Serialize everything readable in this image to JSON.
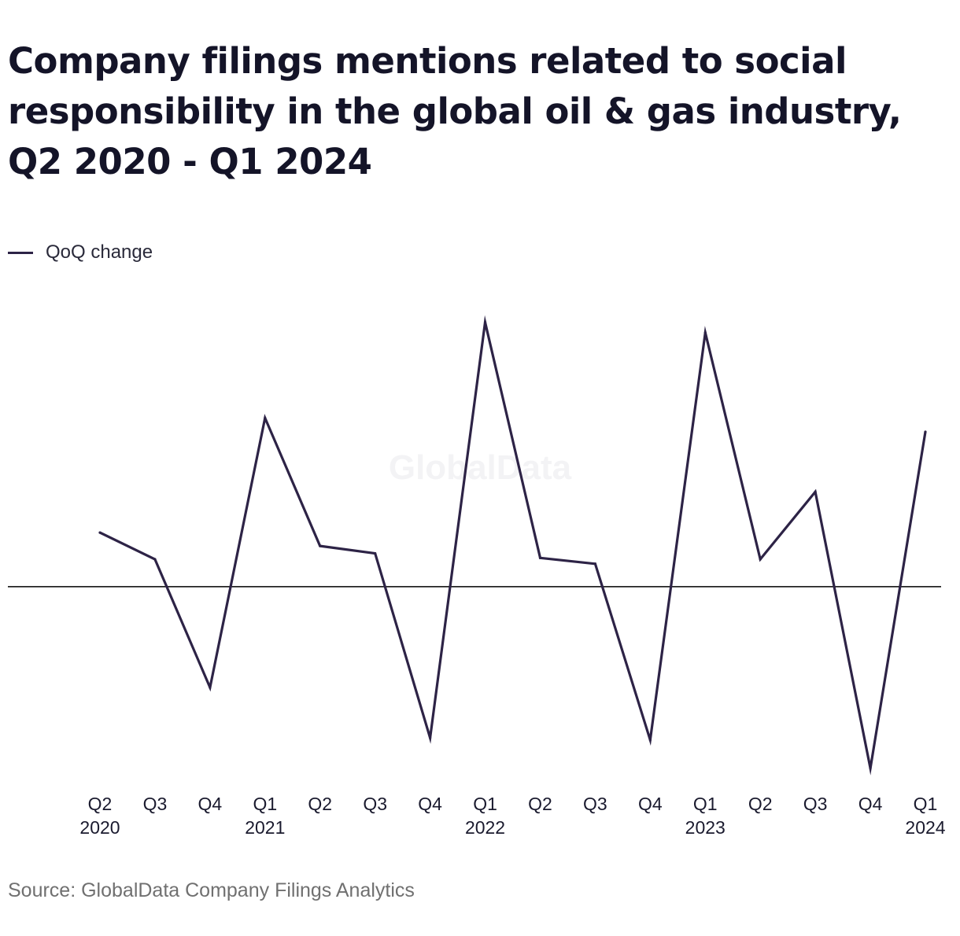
{
  "title": "Company filings mentions related to social responsibility in the global oil & gas industry, Q2 2020 - Q1 2024",
  "legend": {
    "series_label": "QoQ change"
  },
  "watermark": "GlobalData",
  "source": "Source: GlobalData Company Filings Analytics",
  "colors": {
    "line": "#2d2346",
    "zero_line": "#000000",
    "text": "#141428"
  },
  "chart_data": {
    "type": "line",
    "title": "Company filings mentions related to social responsibility in the global oil & gas industry, Q2 2020 - Q1 2024",
    "xlabel": "",
    "ylabel": "",
    "categories": [
      "Q2 2020",
      "Q3",
      "Q4",
      "Q1 2021",
      "Q2",
      "Q3",
      "Q4",
      "Q1 2022",
      "Q2",
      "Q3",
      "Q4",
      "Q1 2023",
      "Q2",
      "Q3",
      "Q4",
      "Q1 2024"
    ],
    "tick_labels": [
      [
        "Q2",
        "2020"
      ],
      [
        "Q3",
        ""
      ],
      [
        "Q4",
        ""
      ],
      [
        "Q1",
        "2021"
      ],
      [
        "Q2",
        ""
      ],
      [
        "Q3",
        ""
      ],
      [
        "Q4",
        ""
      ],
      [
        "Q1",
        "2022"
      ],
      [
        "Q2",
        ""
      ],
      [
        "Q3",
        ""
      ],
      [
        "Q4",
        ""
      ],
      [
        "Q1",
        "2023"
      ],
      [
        "Q2",
        ""
      ],
      [
        "Q3",
        ""
      ],
      [
        "Q4",
        ""
      ],
      [
        "Q1",
        "2024"
      ]
    ],
    "series": [
      {
        "name": "QoQ change",
        "values": [
          0.203,
          0.103,
          -0.378,
          0.633,
          0.153,
          0.125,
          -0.567,
          0.992,
          0.108,
          0.086,
          -0.575,
          0.953,
          0.103,
          0.356,
          -0.681,
          0.581
        ]
      }
    ],
    "ylim": [
      -0.72,
      1.05
    ],
    "zero_line": true,
    "grid": false,
    "legend_position": "top-left"
  }
}
